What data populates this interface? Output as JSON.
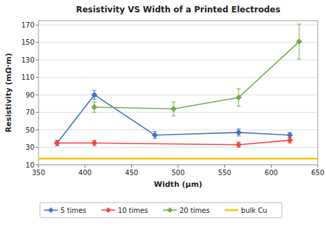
{
  "chart_data": {
    "type": "line",
    "title": "Resistivity VS Width of a Printed Electrodes",
    "x_label": "Width (μm)",
    "y_label": "Resistivity (mΩ·m)",
    "xlim": [
      350,
      650
    ],
    "ylim": [
      10,
      175
    ],
    "xticks": [
      350,
      400,
      450,
      500,
      550,
      600,
      650
    ],
    "yticks": [
      10,
      30,
      50,
      70,
      90,
      110,
      130,
      150,
      170
    ],
    "grid": "y",
    "legend": "bottom",
    "series": [
      {
        "name": "5 times",
        "color": "#4472C4",
        "marker": "diamond",
        "x": [
          370,
          410,
          475,
          565,
          620
        ],
        "values": [
          35,
          90,
          44,
          47,
          44
        ],
        "errors": [
          3,
          5,
          4,
          4,
          3
        ]
      },
      {
        "name": "10 times",
        "color": "#FF4040",
        "marker": "diamond",
        "x": [
          370,
          410,
          565,
          620
        ],
        "values": [
          35,
          35,
          33,
          38
        ],
        "errors": [
          3,
          3,
          3,
          3
        ]
      },
      {
        "name": "20 times",
        "color": "#70AD47",
        "marker": "diamond",
        "x": [
          410,
          495,
          565,
          630
        ],
        "values": [
          76,
          74,
          87,
          151
        ],
        "errors": [
          6,
          8,
          10,
          20
        ]
      },
      {
        "name": "bulk Cu",
        "color": "#FFC000",
        "x": [
          350,
          650
        ],
        "values": [
          17,
          17
        ]
      }
    ]
  }
}
